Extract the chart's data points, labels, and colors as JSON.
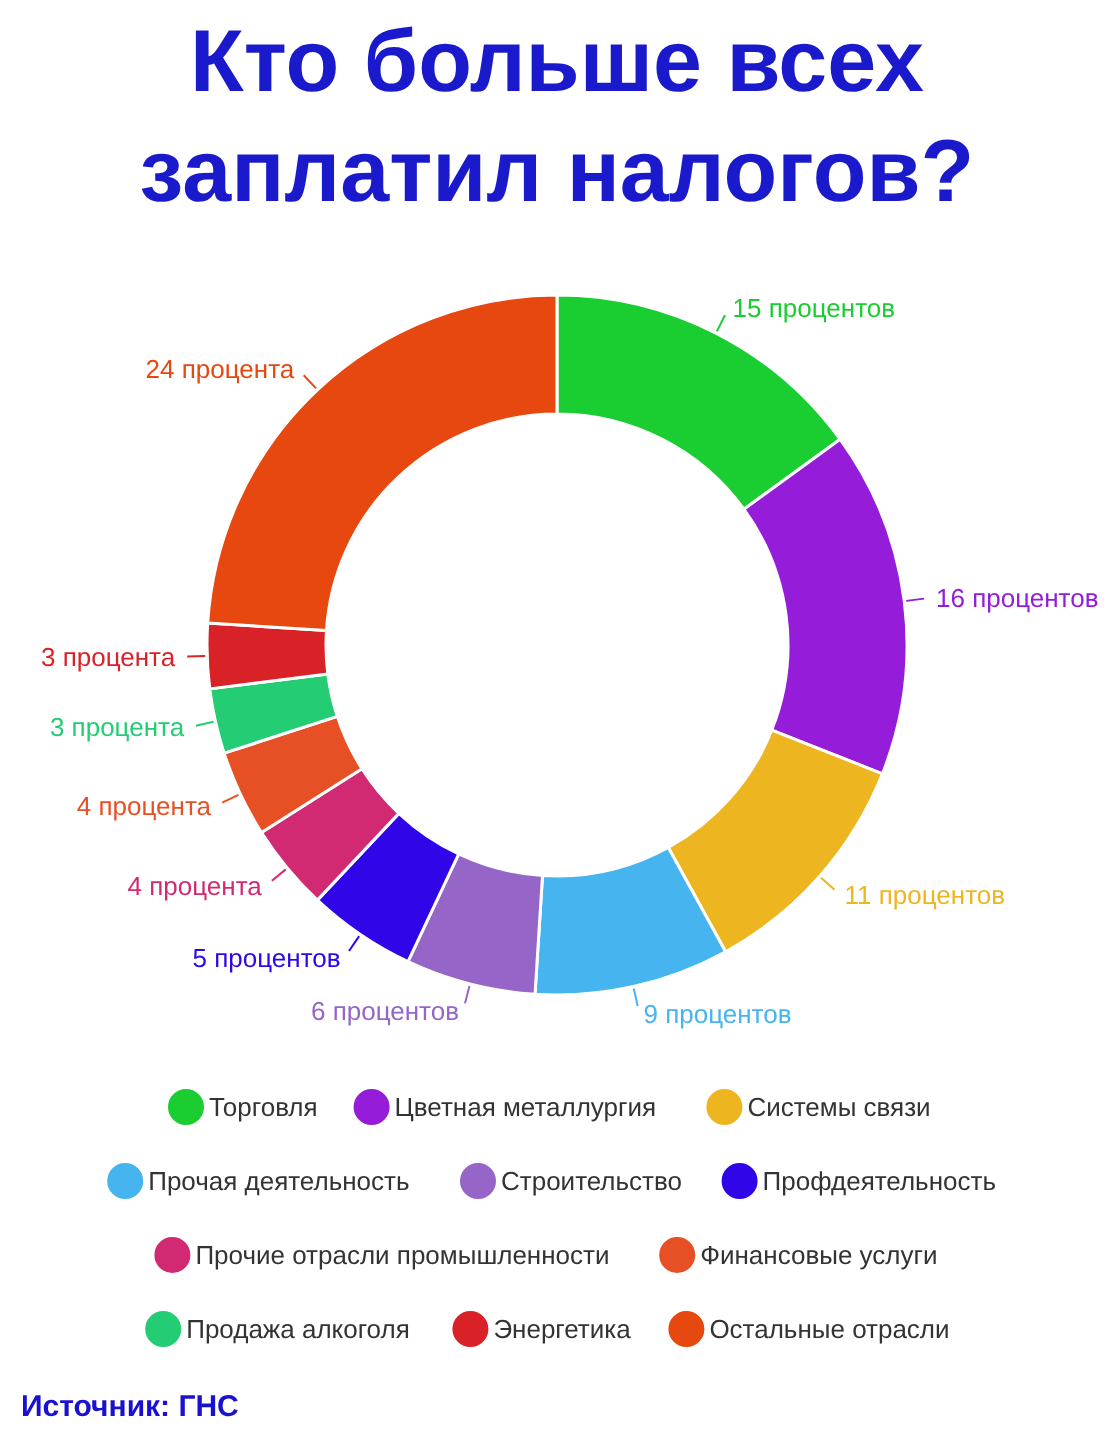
{
  "chart_data": {
    "type": "donut",
    "title": "Кто больше всех заплатил налогов?",
    "categories": [
      "Торговля",
      "Цветная металлургия",
      "Системы связи",
      "Прочая деятельность",
      "Строительство",
      "Профдеятельность",
      "Прочие отрасли промышленности",
      "Финансовые услуги",
      "Продажа алкоголя",
      "Энергетика",
      "Остальные отрасли"
    ],
    "values": [
      15,
      16,
      11,
      9,
      6,
      5,
      4,
      4,
      3,
      3,
      24
    ],
    "colors": [
      "#1acd30",
      "#951cd9",
      "#edb520",
      "#45b4ef",
      "#9566c8",
      "#3005e8",
      "#d12a72",
      "#e65024",
      "#24cc74",
      "#d92228",
      "#e64810"
    ],
    "value_labels": [
      "15 процентов",
      "16 процентов",
      "11 процентов",
      "9 процентов",
      "6 процентов",
      "5 процентов",
      "4 процента",
      "4 процента",
      "3 процента",
      "3 процента",
      "24 процента"
    ],
    "legend": "bottom",
    "annotations": [
      "Источник: ГНС"
    ]
  }
}
